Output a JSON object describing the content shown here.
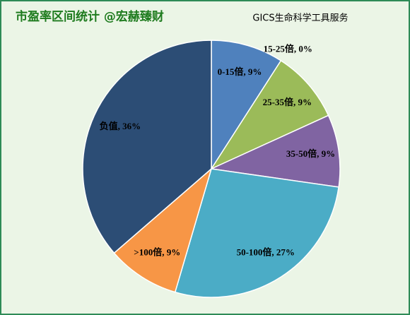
{
  "chart_data": {
    "type": "pie",
    "title": "市盈率区间统计 @宏赫臻财",
    "subtitle": "GICS生命科学工具服务",
    "categories": [
      "0-15倍",
      "15-25倍",
      "25-35倍",
      "35-50倍",
      "50-100倍",
      ">100倍",
      "负值"
    ],
    "values": [
      9,
      0,
      9,
      9,
      27,
      9,
      36
    ],
    "value_labels": [
      "0-15倍, 9%",
      "15-25倍, 0%",
      "25-35倍, 9%",
      "35-50倍, 9%",
      "50-100倍, 27%",
      ">100倍, 9%",
      "负值, 36%"
    ],
    "colors": [
      "#4f81bd",
      "#c0504d",
      "#9bbb59",
      "#8064a2",
      "#4bacc6",
      "#f79646",
      "#2c4d75"
    ]
  }
}
